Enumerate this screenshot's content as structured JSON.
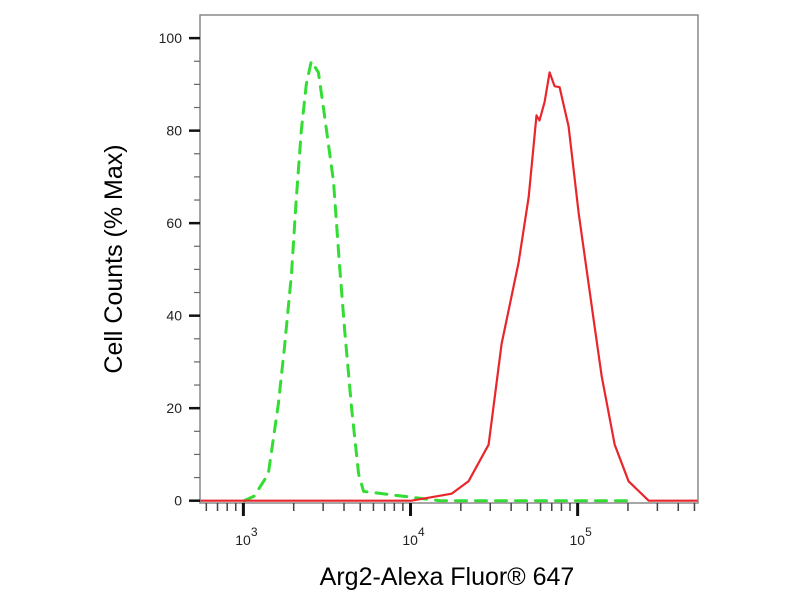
{
  "chart_data": {
    "type": "line",
    "title": "",
    "xlabel": "Arg2-Alexa Fluor® 647",
    "ylabel": "Cell Counts (% Max)",
    "xscale": "log",
    "xlim": [
      550,
      525000
    ],
    "ylim": [
      -0.5,
      105
    ],
    "grid": false,
    "legend": "none",
    "x_tick_labels": [
      {
        "base": "10",
        "exp": "3",
        "value": 1000
      },
      {
        "base": "10",
        "exp": "4",
        "value": 10000
      },
      {
        "base": "10",
        "exp": "5",
        "value": 100000
      }
    ],
    "y_ticks": [
      0,
      20,
      40,
      60,
      80,
      100
    ],
    "series": [
      {
        "color": "#33dd33",
        "style": "dashed",
        "x": [
          1010,
          1160,
          1410,
          1620,
          1760,
          1940,
          2070,
          2220,
          2380,
          2550,
          2810,
          3010,
          3460,
          3760,
          4030,
          4440,
          4890,
          5240,
          15000,
          200000
        ],
        "y": [
          0,
          1,
          5.8,
          21,
          33,
          49,
          65,
          80,
          90,
          95,
          92.6,
          85,
          69,
          51,
          37,
          20,
          5.8,
          2,
          0,
          0
        ]
      },
      {
        "color": "#e8262b",
        "style": "solid",
        "x": [
          550,
          10140,
          17620,
          22230,
          29310,
          35080,
          44360,
          50930,
          56750,
          59160,
          63390,
          67920,
          72780,
          77980,
          88310,
          101400,
          126500,
          139300,
          166700,
          201800,
          266100,
          525000
        ],
        "y": [
          0,
          0,
          1.5,
          4.2,
          12.1,
          33.9,
          51.5,
          65.7,
          83.3,
          82.2,
          86.2,
          92.6,
          89.6,
          89.4,
          80.9,
          62.1,
          37.5,
          26.9,
          12.1,
          4.2,
          0,
          0
        ]
      }
    ]
  }
}
